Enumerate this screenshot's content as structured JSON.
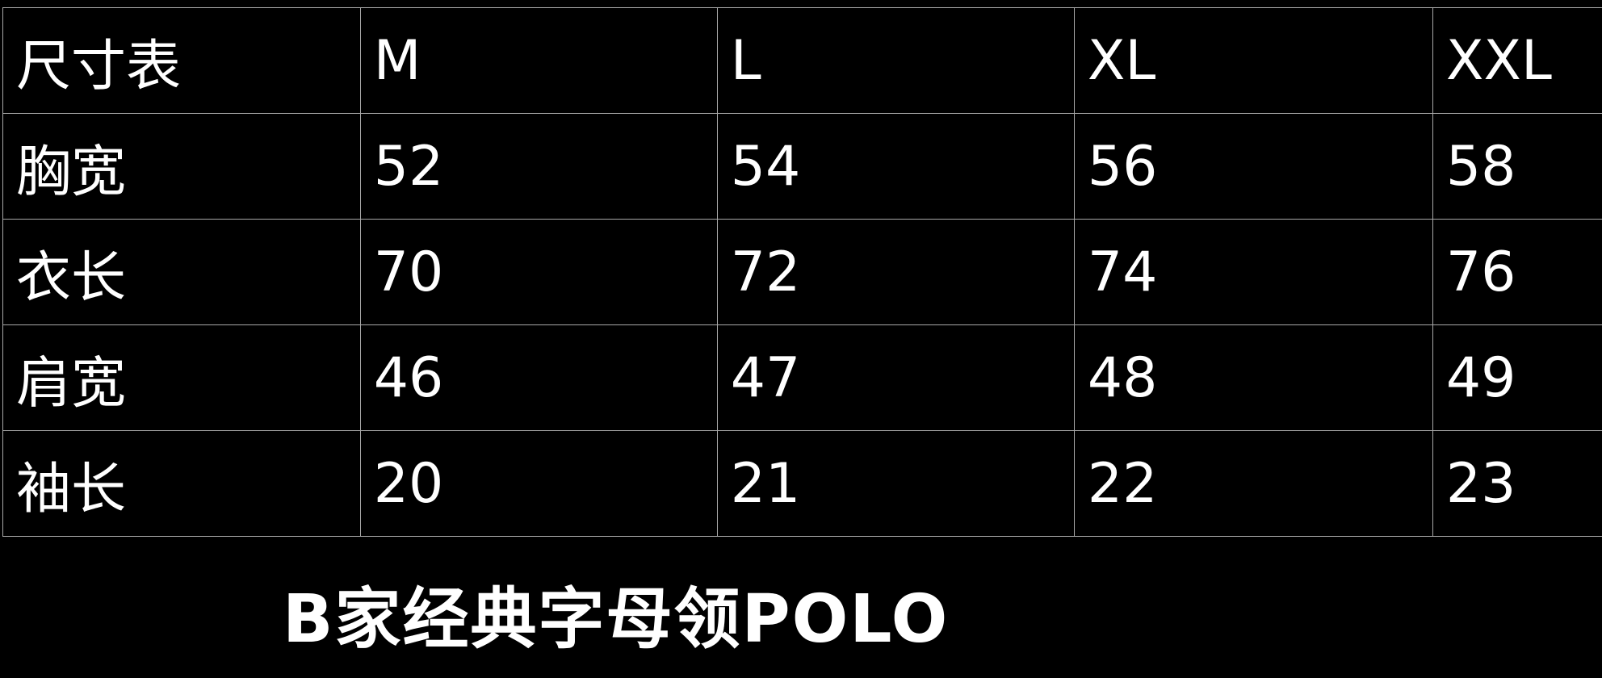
{
  "table": {
    "header": [
      "尺寸表",
      "M",
      "L",
      "XL",
      "XXL"
    ],
    "rows": [
      [
        "胸宽",
        "52",
        "54",
        "56",
        "58"
      ],
      [
        "衣长",
        "70",
        "72",
        "74",
        "76"
      ],
      [
        "肩宽",
        "46",
        "47",
        "48",
        "49"
      ],
      [
        "袖长",
        "20",
        "21",
        "22",
        "23"
      ]
    ]
  },
  "title": "B家经典字母领POLO"
}
